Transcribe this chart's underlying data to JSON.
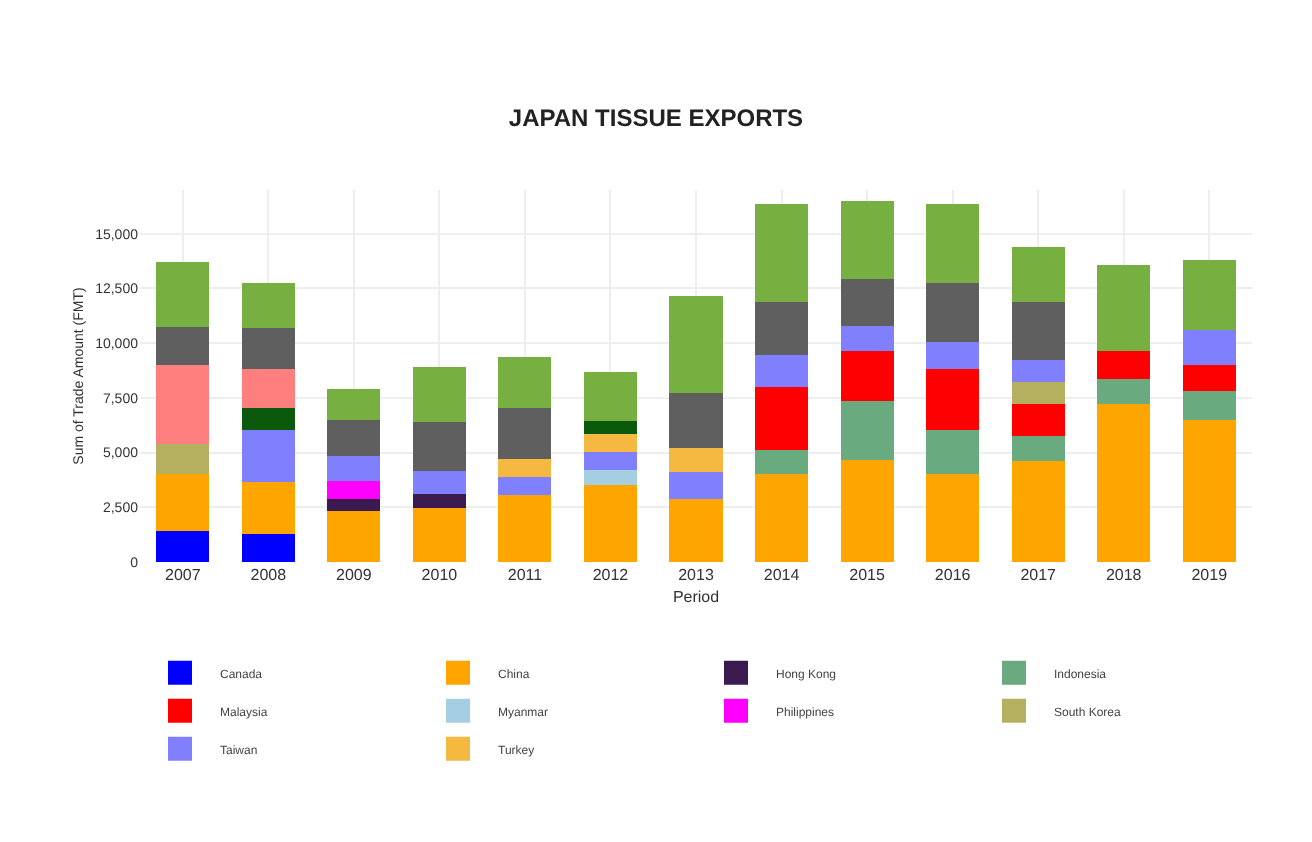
{
  "chart_data": {
    "type": "bar",
    "title": "JAPAN TISSUE EXPORTS",
    "xlabel": "Period",
    "ylabel": "Sum of Trade Amount (FMT)",
    "categories": [
      "2007",
      "2008",
      "2009",
      "2010",
      "2011",
      "2012",
      "2013",
      "2014",
      "2015",
      "2016",
      "2017",
      "2018",
      "2019"
    ],
    "stacked": true,
    "grid": true,
    "legend": "bottom",
    "ylim": [
      0,
      17000
    ],
    "yticks": [
      0,
      {
        "value": 2500,
        "label": "2,500"
      },
      {
        "value": 5000,
        "label": "5,000"
      },
      {
        "value": 7500,
        "label": "7,500"
      },
      {
        "value": 10000,
        "label": "10,000"
      },
      {
        "value": 12500,
        "label": "12,500"
      },
      {
        "value": 15000,
        "label": "15,000"
      }
    ],
    "series": [
      {
        "name": "Canada",
        "color": "#0000ff",
        "values": [
          1400,
          1260,
          null,
          null,
          null,
          null,
          null,
          null,
          null,
          null,
          null,
          null,
          null
        ]
      },
      {
        "name": "China",
        "color": "#ffa500",
        "values": [
          2600,
          2380,
          2340,
          2450,
          3040,
          3530,
          2900,
          4010,
          4680,
          4010,
          4600,
          7240,
          6500
        ]
      },
      {
        "name": "Hong Kong",
        "color": "#3b1a4f",
        "values": [
          null,
          null,
          560,
          670,
          null,
          null,
          null,
          null,
          null,
          null,
          null,
          null,
          null
        ]
      },
      {
        "name": "Indonesia",
        "color": "#6aaa7f",
        "values": [
          null,
          null,
          null,
          null,
          null,
          null,
          null,
          1110,
          2670,
          2040,
          1160,
          1120,
          1300
        ]
      },
      {
        "name": "Malaysia",
        "color": "#ff0000",
        "values": [
          null,
          null,
          null,
          null,
          null,
          null,
          null,
          2860,
          2300,
          2790,
          1440,
          1290,
          1220
        ]
      },
      {
        "name": "Myanmar",
        "color": "#a6cee3",
        "values": [
          null,
          null,
          null,
          null,
          null,
          670,
          null,
          null,
          null,
          null,
          null,
          null,
          null
        ]
      },
      {
        "name": "Philippines",
        "color": "#ff00ff",
        "values": [
          null,
          null,
          810,
          null,
          null,
          null,
          null,
          null,
          null,
          null,
          null,
          null,
          null
        ]
      },
      {
        "name": "South Korea",
        "color": "#b5b060",
        "values": [
          1400,
          null,
          null,
          null,
          null,
          null,
          null,
          null,
          null,
          null,
          1040,
          null,
          null
        ]
      },
      {
        "name": "Taiwan",
        "color": "#8080ff",
        "values": [
          null,
          2380,
          1120,
          1040,
          860,
          850,
          1220,
          1490,
          1120,
          1220,
          970,
          null,
          1600
        ]
      },
      {
        "name": "Turkey",
        "color": "#f5b942",
        "values": [
          null,
          null,
          null,
          null,
          820,
          820,
          1080,
          null,
          null,
          null,
          null,
          null,
          null
        ]
      },
      {
        "color": "#0b5a0b",
        "values": [
          null,
          1040,
          null,
          null,
          null,
          590,
          null,
          null,
          null,
          null,
          null,
          null,
          null
        ]
      },
      {
        "color": "#ff7f7f",
        "values": [
          3600,
          1780,
          null,
          null,
          null,
          null,
          null,
          null,
          null,
          null,
          null,
          null,
          null
        ]
      },
      {
        "color": "#5f5f5f",
        "values": [
          1750,
          1860,
          1670,
          2260,
          2340,
          null,
          2520,
          2410,
          2150,
          2680,
          2670,
          null,
          null
        ]
      },
      {
        "color": "#77b041",
        "values": [
          2970,
          2040,
          1410,
          2490,
          2300,
          2230,
          4420,
          4460,
          3600,
          3600,
          2530,
          3940,
          3160
        ]
      }
    ]
  }
}
